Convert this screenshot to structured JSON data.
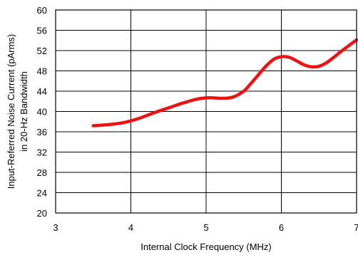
{
  "chart_data": {
    "type": "line",
    "title": "",
    "xlabel": "Internal Clock Frequency (MHz)",
    "ylabel_lines": [
      "Input-Referred Noise Current (pArms)",
      "in 20-Hz Bandwidth"
    ],
    "xlim": [
      3,
      7
    ],
    "ylim": [
      20,
      60
    ],
    "x_ticks": [
      3,
      4,
      5,
      6,
      7
    ],
    "y_ticks": [
      20,
      24,
      28,
      32,
      36,
      40,
      44,
      48,
      52,
      56,
      60
    ],
    "grid": true,
    "series": [
      {
        "x": [
          3.5,
          3.7,
          3.9,
          4.1,
          4.3,
          4.5,
          4.7,
          4.9,
          5.05,
          5.2,
          5.35,
          5.5,
          5.6,
          5.7,
          5.8,
          5.9,
          6.0,
          6.1,
          6.2,
          6.3,
          6.4,
          6.5,
          6.6,
          6.7,
          6.8,
          6.9,
          7.0
        ],
        "y": [
          37.2,
          37.4,
          37.8,
          38.6,
          39.7,
          40.7,
          41.7,
          42.5,
          42.7,
          42.6,
          42.8,
          44.0,
          45.6,
          47.3,
          49.0,
          50.3,
          50.8,
          50.7,
          50.0,
          49.2,
          48.8,
          48.9,
          49.6,
          50.7,
          51.9,
          53.0,
          54.1
        ],
        "color": "#ee1111"
      }
    ]
  }
}
